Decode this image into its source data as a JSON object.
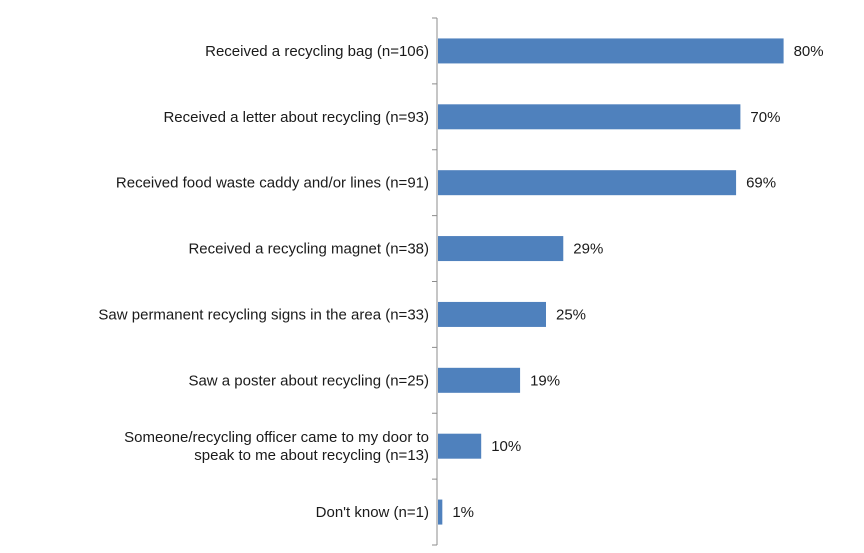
{
  "chart_data": {
    "type": "bar",
    "orientation": "horizontal",
    "title": "",
    "xlabel": "",
    "ylabel": "",
    "xlim": [
      0,
      100
    ],
    "grid": false,
    "legend": "none",
    "bar_color": "#4f81bd",
    "categories": [
      [
        "Received a recycling bag (n=106)"
      ],
      [
        "Received a letter about recycling (n=93)"
      ],
      [
        "Received food waste caddy and/or lines (n=91)"
      ],
      [
        "Received a recycling magnet (n=38)"
      ],
      [
        "Saw permanent recycling signs in the area (n=33)"
      ],
      [
        "Saw a poster about recycling (n=25)"
      ],
      [
        "Someone/recycling officer came to my door to",
        "speak to me about recycling (n=13)"
      ],
      [
        "Don't know (n=1)"
      ]
    ],
    "values": [
      80,
      70,
      69,
      29,
      25,
      19,
      10,
      1
    ],
    "value_labels": [
      "80%",
      "70%",
      "69%",
      "29%",
      "25%",
      "19%",
      "10%",
      "1%"
    ]
  }
}
